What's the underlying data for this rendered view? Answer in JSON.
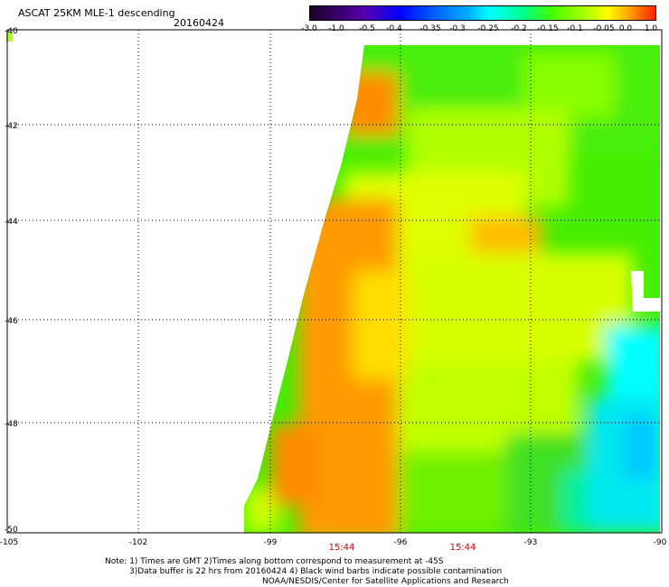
{
  "header": {
    "title": "ASCAT 25KM MLE-1 descending",
    "date": "20160424"
  },
  "colorbar": {
    "labels": [
      "-3.0",
      "-1.0",
      "-0.5",
      "-0.4",
      "-0.35",
      "-0.3",
      "-0.25",
      "-0.2",
      "-0.15",
      "-0.1",
      "-0.05",
      "0.0",
      "1.0"
    ]
  },
  "map": {
    "lat_labels": [
      "-40",
      "-42",
      "-44",
      "-46",
      "-48",
      "-50"
    ],
    "lon_labels": [
      "-105",
      "-102",
      "-99",
      "-96",
      "-93",
      "-90"
    ],
    "time_labels": [
      "15:44",
      "15:44"
    ]
  },
  "footer": {
    "line1": "Note: 1) Times are GMT 2)Times along bottom correspond to measurement at -45S",
    "line2": "3)Data buffer is 22 hrs from 20160424 4) Black wind barbs indicate possible contamination",
    "line3": "NOAA/NESDIS/Center for Satellite Applications and Research"
  },
  "colors": {
    "orange": "#ff8000",
    "yellow": "#eeff00",
    "lime": "#a8ff10",
    "green": "#44ee00",
    "cyan": "#00ffff",
    "teal": "#00ee99"
  }
}
